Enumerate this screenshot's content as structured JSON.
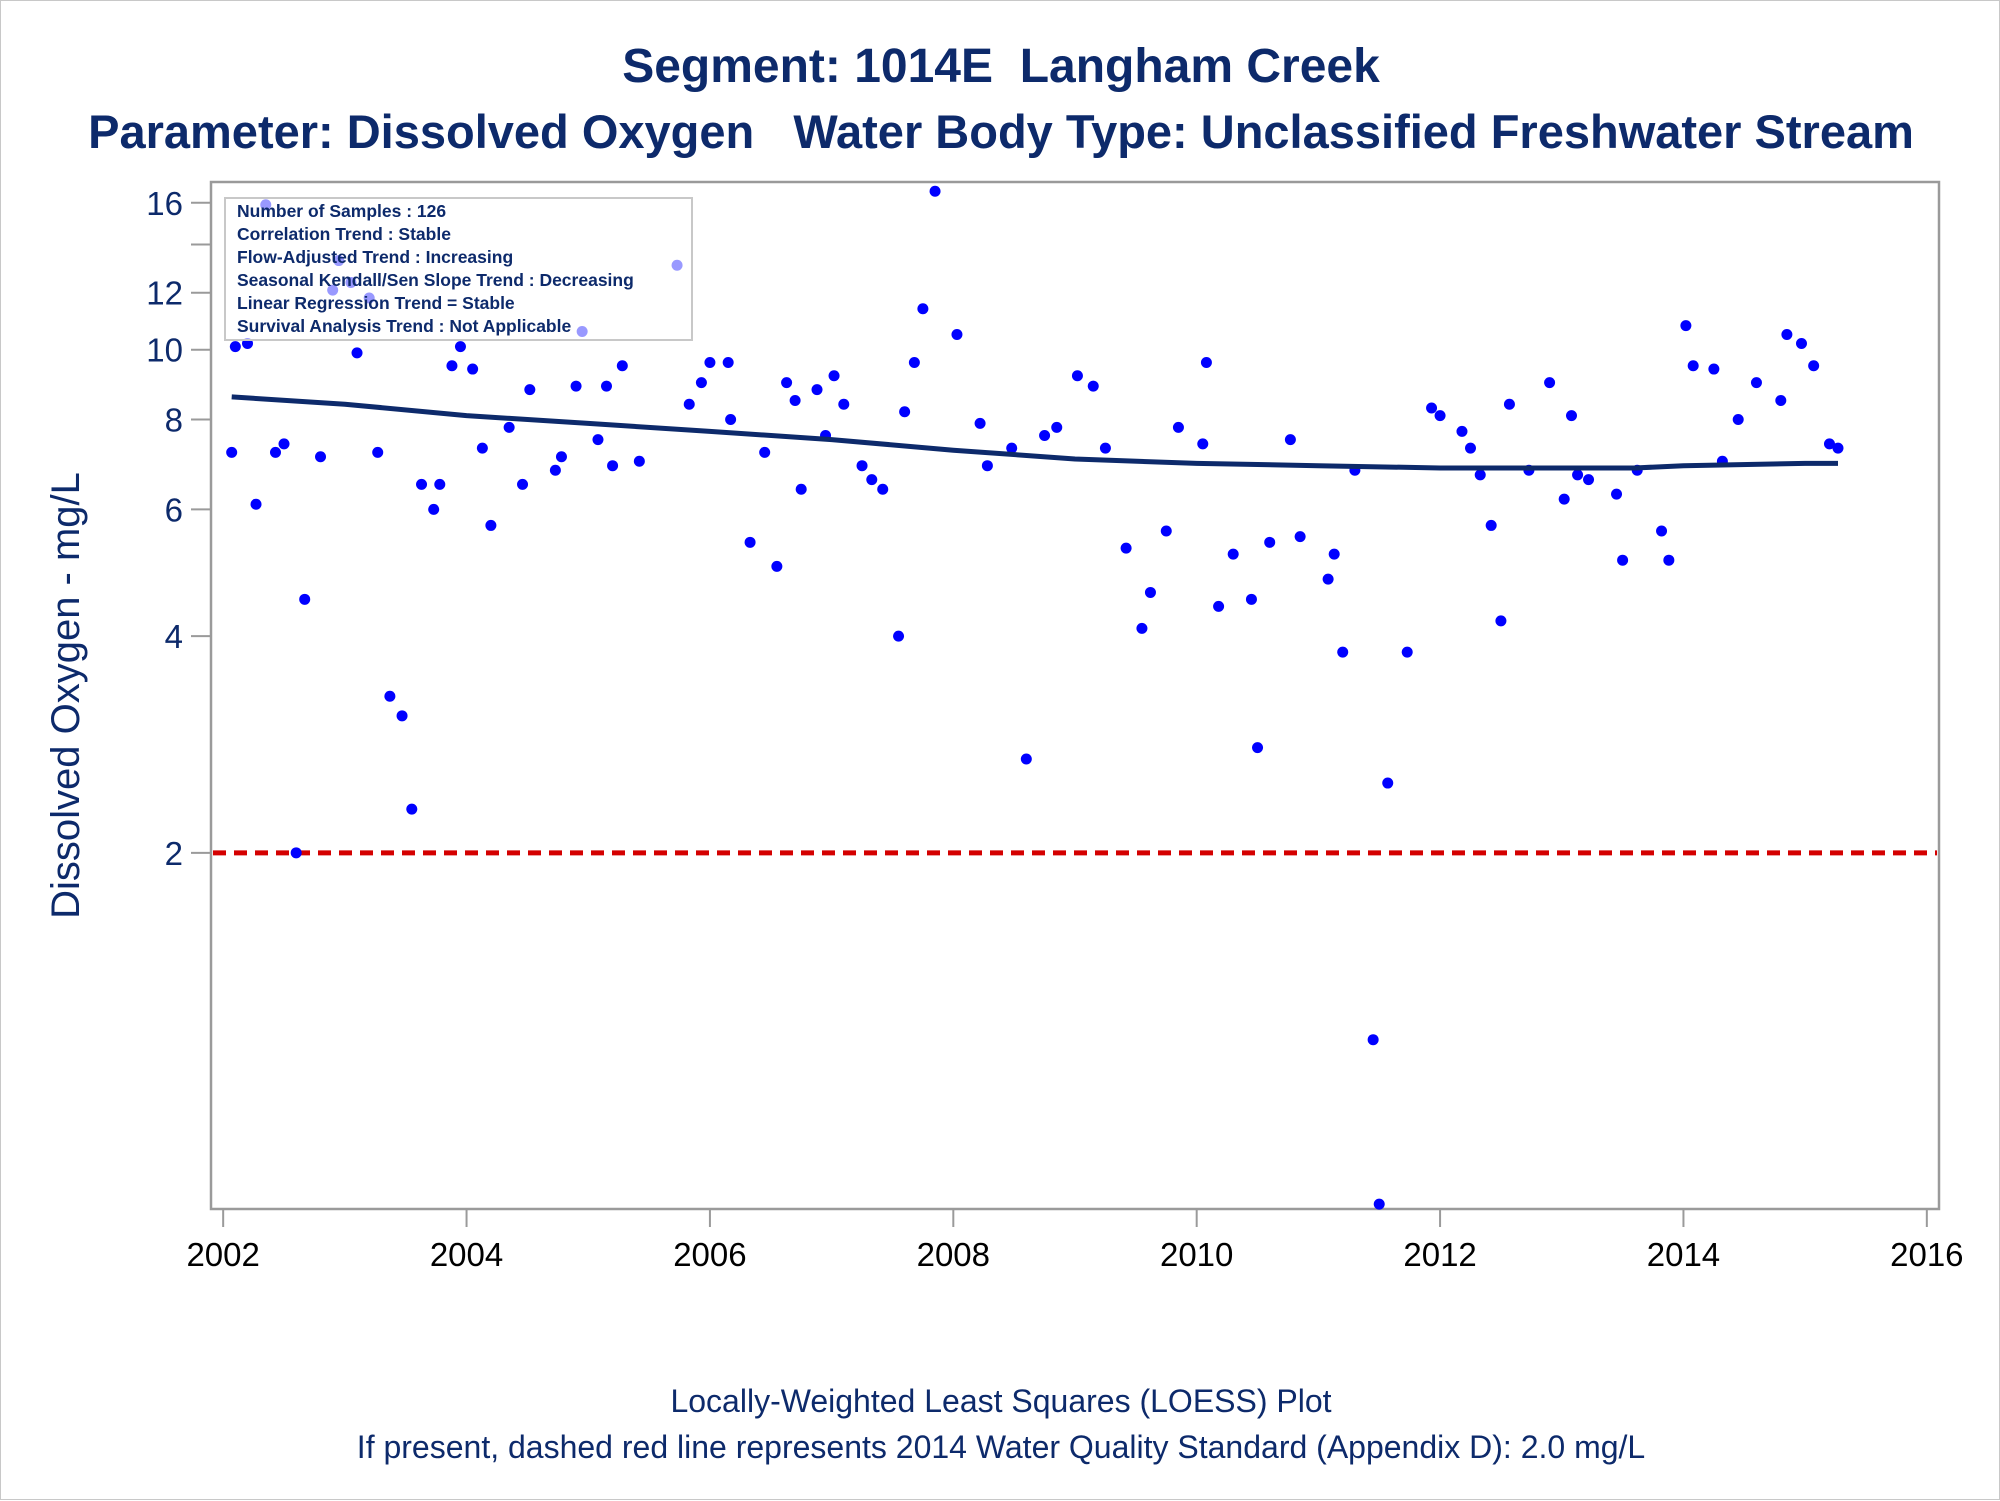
{
  "titles": {
    "line1": "Segment: 1014E  Langham Creek",
    "line2": "Parameter: Dissolved Oxygen   Water Body Type: Unclassified Freshwater Stream"
  },
  "footnotes": {
    "line1": "Locally-Weighted Least Squares (LOESS) Plot",
    "line2": "If present, dashed red line represents 2014 Water Quality Standard (Appendix D): 2.0 mg/L"
  },
  "colors": {
    "points": "#0000ff",
    "loess": "#0d2a6b",
    "standard_line": "#d40000",
    "text": "#0d2a6b",
    "axis": "#9a9a9a"
  },
  "stats_box": {
    "lines": [
      "Number of Samples : 126",
      "Correlation Trend : Stable",
      "Flow-Adjusted Trend : Increasing",
      "Seasonal Kendall/Sen Slope Trend : Decreasing",
      "Linear Regression Trend = Stable",
      "Survival Analysis Trend : Not Applicable"
    ]
  },
  "chart_data": {
    "type": "scatter",
    "ylabel": "Dissolved Oxygen - mg/L",
    "xlabel": "",
    "x_scale": "linear (years)",
    "y_scale": "log",
    "xlim": [
      2001.9,
      2016.1
    ],
    "ylim": [
      0.64,
      17.1
    ],
    "x_ticks": [
      2002,
      2004,
      2006,
      2008,
      2010,
      2012,
      2014,
      2016
    ],
    "y_ticks": [
      2,
      4,
      6,
      8,
      10,
      12,
      16
    ],
    "y_minor_ticks": [
      14
    ],
    "grid": false,
    "reference_line": {
      "y": 2.0,
      "style": "dashed",
      "color": "#d40000"
    },
    "series": [
      {
        "type": "scatter",
        "x": [
          2002.07,
          2002.1,
          2002.2,
          2002.27,
          2002.35,
          2002.43,
          2002.5,
          2002.6,
          2002.67,
          2002.8,
          2002.9,
          2002.95,
          2003.05,
          2003.1,
          2003.2,
          2003.27,
          2003.37,
          2003.47,
          2003.55,
          2003.63,
          2003.73,
          2003.78,
          2003.88,
          2003.95,
          2004.05,
          2004.13,
          2004.2,
          2004.35,
          2004.46,
          2004.52,
          2004.73,
          2004.78,
          2004.9,
          2004.95,
          2005.08,
          2005.15,
          2005.2,
          2005.28,
          2005.42,
          2005.73,
          2005.83,
          2005.93,
          2006.0,
          2006.15,
          2006.17,
          2006.33,
          2006.45,
          2006.55,
          2006.63,
          2006.7,
          2006.75,
          2006.88,
          2006.95,
          2007.02,
          2007.1,
          2007.25,
          2007.33,
          2007.42,
          2007.55,
          2007.6,
          2007.68,
          2007.75,
          2007.85,
          2008.03,
          2008.22,
          2008.28,
          2008.48,
          2008.6,
          2008.75,
          2008.85,
          2009.02,
          2009.15,
          2009.25,
          2009.42,
          2009.55,
          2009.62,
          2009.75,
          2009.85,
          2010.05,
          2010.08,
          2010.18,
          2010.3,
          2010.45,
          2010.5,
          2010.6,
          2010.77,
          2010.85,
          2011.08,
          2011.13,
          2011.2,
          2011.3,
          2011.45,
          2011.5,
          2011.57,
          2011.73,
          2011.93,
          2012.0,
          2012.18,
          2012.25,
          2012.33,
          2012.42,
          2012.5,
          2012.57,
          2012.73,
          2012.9,
          2013.02,
          2013.08,
          2013.13,
          2013.22,
          2013.45,
          2013.5,
          2013.62,
          2013.82,
          2013.88,
          2014.02,
          2014.08,
          2014.25,
          2014.32,
          2014.45,
          2014.6,
          2014.8,
          2014.85,
          2014.97,
          2015.07,
          2015.2,
          2015.27
        ],
        "y": [
          7.2,
          10.1,
          10.2,
          6.1,
          15.9,
          7.2,
          7.4,
          2.0,
          4.5,
          7.1,
          12.1,
          13.3,
          12.4,
          9.9,
          11.8,
          7.2,
          3.3,
          3.1,
          2.3,
          6.5,
          6.0,
          6.5,
          9.5,
          10.1,
          9.4,
          7.3,
          5.7,
          7.8,
          6.5,
          8.8,
          6.8,
          7.1,
          8.9,
          10.6,
          7.5,
          8.9,
          6.9,
          9.5,
          7.0,
          13.1,
          8.4,
          9.0,
          9.6,
          9.6,
          8.0,
          5.4,
          7.2,
          5.0,
          9.0,
          8.5,
          6.4,
          8.8,
          7.6,
          9.2,
          8.4,
          6.9,
          6.6,
          6.4,
          4.0,
          8.2,
          9.6,
          11.4,
          16.6,
          10.5,
          7.9,
          6.9,
          7.3,
          2.7,
          7.6,
          7.8,
          9.2,
          8.9,
          7.3,
          5.3,
          4.1,
          4.6,
          5.6,
          7.8,
          7.4,
          9.6,
          4.4,
          5.2,
          4.5,
          2.8,
          5.4,
          7.5,
          5.5,
          4.8,
          5.2,
          3.8,
          6.8,
          1.1,
          0.65,
          2.5,
          3.8,
          8.3,
          8.1,
          7.7,
          7.3,
          6.7,
          5.7,
          4.2,
          8.4,
          6.8,
          9.0,
          6.2,
          8.1,
          6.7,
          6.6,
          6.3,
          5.1,
          6.8,
          5.6,
          5.1,
          10.8,
          9.5,
          9.4,
          7.0,
          8.0,
          9.0,
          8.5,
          10.5,
          10.2,
          9.5,
          7.4,
          7.3
        ]
      },
      {
        "type": "line",
        "name": "LOESS",
        "x": [
          2002.07,
          2003.0,
          2004.0,
          2005.0,
          2006.0,
          2007.0,
          2008.0,
          2009.0,
          2010.0,
          2011.0,
          2012.0,
          2013.0,
          2013.6,
          2014.0,
          2015.0,
          2015.27
        ],
        "y": [
          8.6,
          8.4,
          8.1,
          7.9,
          7.7,
          7.5,
          7.25,
          7.05,
          6.95,
          6.9,
          6.85,
          6.85,
          6.85,
          6.9,
          6.95,
          6.95
        ]
      }
    ]
  }
}
